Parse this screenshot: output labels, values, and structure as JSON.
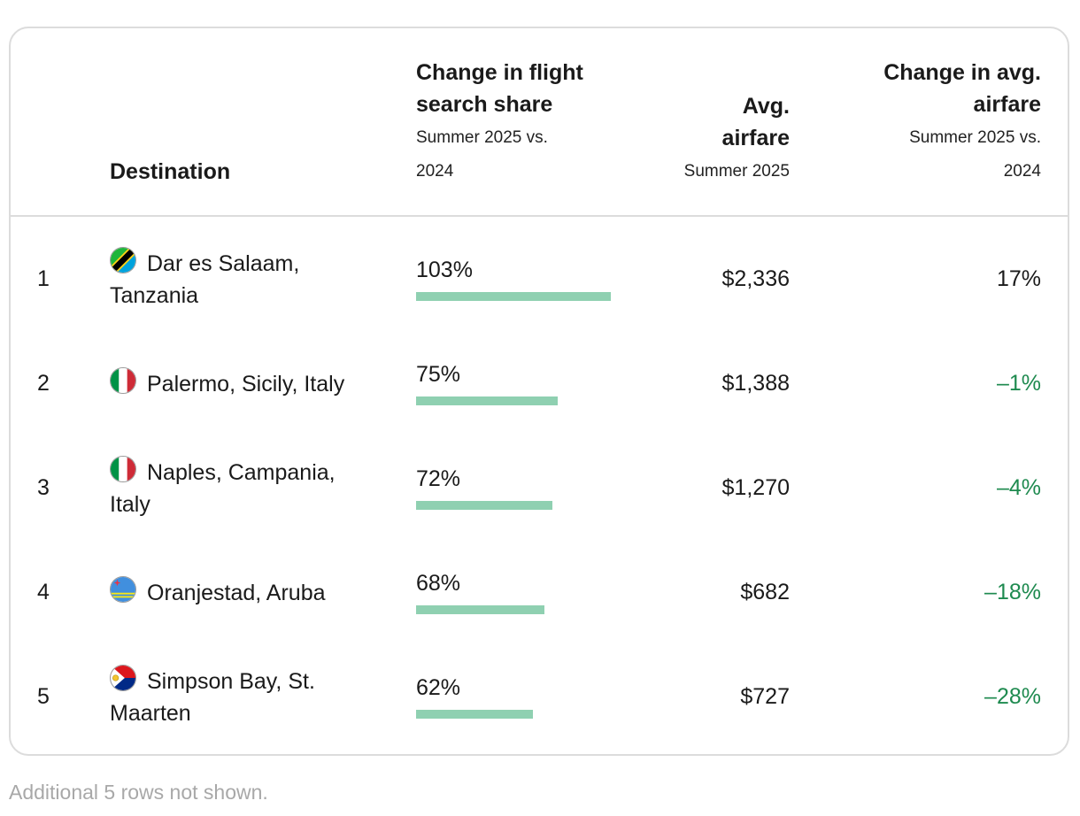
{
  "header": {
    "destination": "Destination",
    "search_share_title_1": "Change in flight",
    "search_share_title_2": "search share",
    "search_share_sub_1": "Summer 2025 vs.",
    "search_share_sub_2": "2024",
    "airfare_title_1": "Avg.",
    "airfare_title_2": "airfare",
    "airfare_sub": "Summer 2025",
    "change_airfare_title_1": "Change in avg.",
    "change_airfare_title_2": "airfare",
    "change_airfare_sub_1": "Summer 2025 vs.",
    "change_airfare_sub_2": "2024"
  },
  "colors": {
    "bar": "#8fd0b1",
    "negative": "#1e8a4f",
    "border": "#dcdcdc",
    "footnote": "#a8a8a8"
  },
  "chart_data": {
    "type": "table",
    "columns": [
      "",
      "Destination",
      "Change in flight search share Summer 2025 vs. 2024",
      "Avg. airfare Summer 2025",
      "Change in avg. airfare Summer 2025 vs. 2024"
    ],
    "rows": [
      {
        "rank": "1",
        "line1": "Dar es Salaam,",
        "line2": "Tanzania",
        "flag_icon": "tanzania-flag-icon",
        "share": 103,
        "share_label": "103%",
        "airfare": "$2,336",
        "change": "17%",
        "change_negative": false
      },
      {
        "rank": "2",
        "line1": "Palermo, Sicily, Italy",
        "line2": "",
        "flag_icon": "italy-flag-icon",
        "share": 75,
        "share_label": "75%",
        "airfare": "$1,388",
        "change": "–1%",
        "change_negative": true
      },
      {
        "rank": "3",
        "line1": "Naples, Campania,",
        "line2": "Italy",
        "flag_icon": "italy-flag-icon",
        "share": 72,
        "share_label": "72%",
        "airfare": "$1,270",
        "change": "–4%",
        "change_negative": true
      },
      {
        "rank": "4",
        "line1": "Oranjestad, Aruba",
        "line2": "",
        "flag_icon": "aruba-flag-icon",
        "share": 68,
        "share_label": "68%",
        "airfare": "$682",
        "change": "–18%",
        "change_negative": true
      },
      {
        "rank": "5",
        "line1": "Simpson Bay, St.",
        "line2": "Maarten",
        "flag_icon": "sint-maarten-flag-icon",
        "share": 62,
        "share_label": "62%",
        "airfare": "$727",
        "change": "–28%",
        "change_negative": true
      }
    ]
  },
  "footnote": "Additional 5 rows not shown."
}
